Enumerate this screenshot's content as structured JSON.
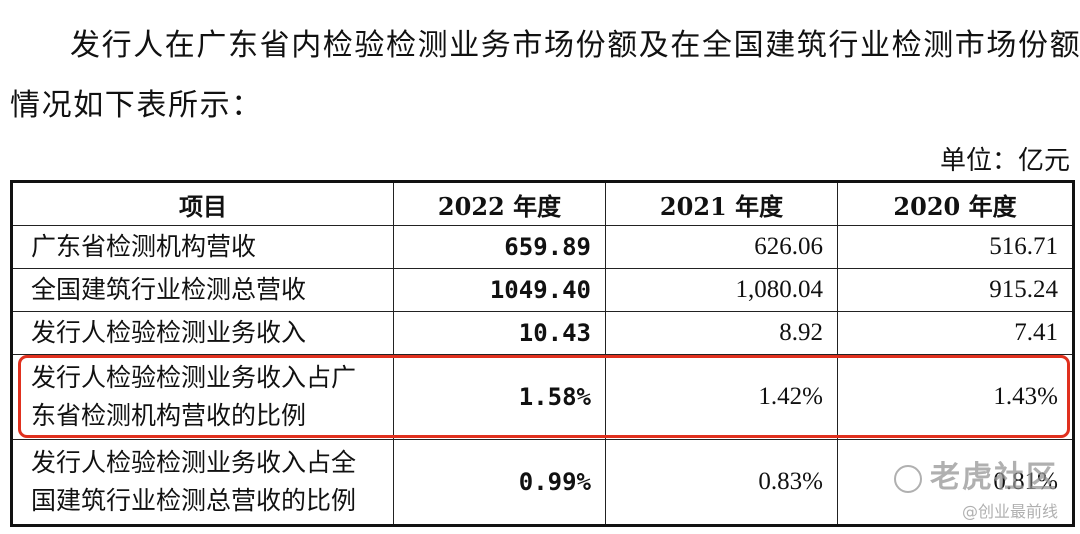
{
  "paragraph": {
    "line1": "发行人在广东省内检验检测业务市场份额及在全国建筑行业检测市场份额",
    "line2": "情况如下表所示："
  },
  "unit": "单位：亿元",
  "table": {
    "headers": [
      "项目",
      "2022 年度",
      "2021 年度",
      "2020 年度"
    ],
    "rows": [
      {
        "label": "广东省检测机构营收",
        "v2022": "659.89",
        "v2021": "626.06",
        "v2020": "516.71"
      },
      {
        "label": "全国建筑行业检测总营收",
        "v2022": "1049.40",
        "v2021": "1,080.04",
        "v2020": "915.24"
      },
      {
        "label": "发行人检验检测业务收入",
        "v2022": "10.43",
        "v2021": "8.92",
        "v2020": "7.41"
      },
      {
        "label_l1": "发行人检验检测业务收入占广",
        "label_l2": "东省检测机构营收的比例",
        "v2022": "1.58%",
        "v2021": "1.42%",
        "v2020": "1.43%"
      },
      {
        "label_l1": "发行人检验检测业务收入占全",
        "label_l2": "国建筑行业检测总营收的比例",
        "v2022": "0.99%",
        "v2021": "0.83%",
        "v2020": "0.81%"
      }
    ]
  },
  "highlight_color": "#e0301e",
  "watermark": {
    "title": "老虎社区",
    "subtitle": "@创业最前线"
  }
}
